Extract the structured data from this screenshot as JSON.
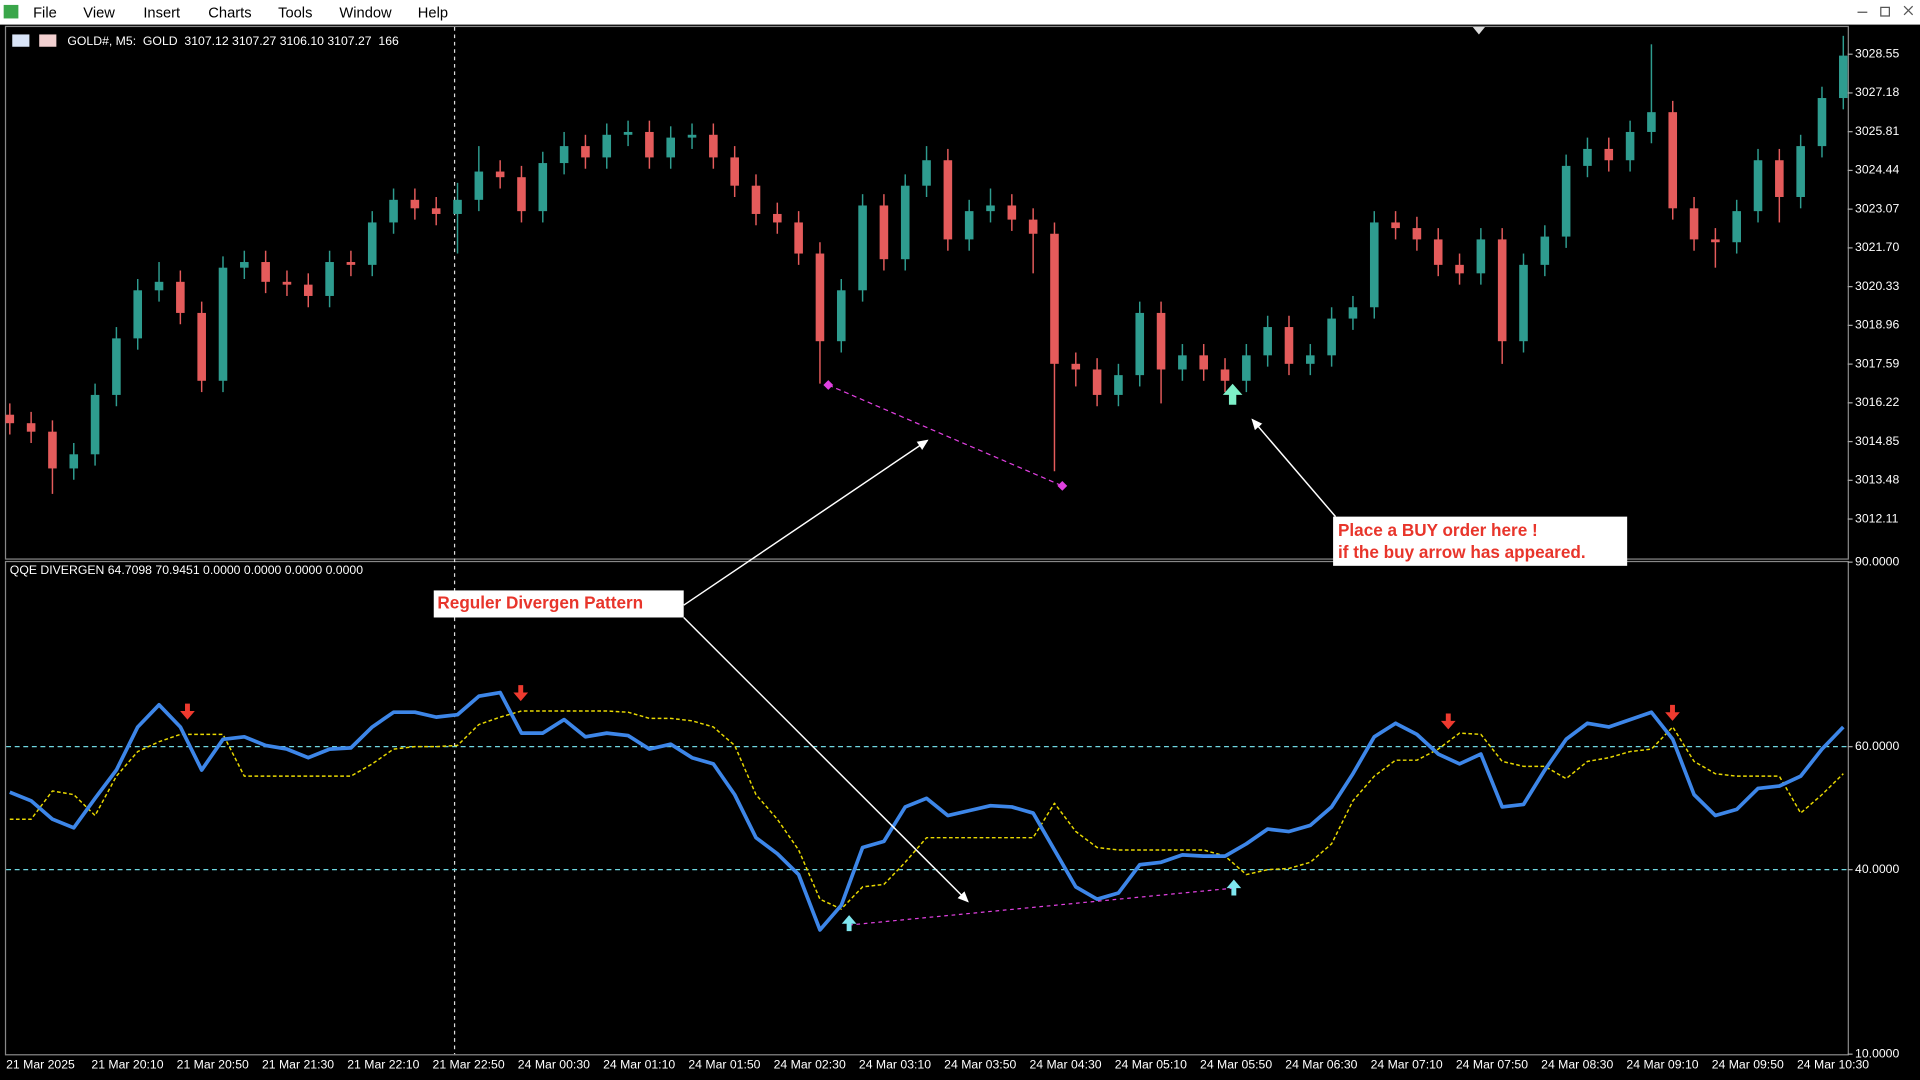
{
  "menu": [
    "File",
    "View",
    "Insert",
    "Charts",
    "Tools",
    "Window",
    "Help"
  ],
  "chart_data": [
    {
      "type": "candlestick",
      "header": "GOLD#, M5:  GOLD  3107.12 3107.27 3106.10 3107.27  166",
      "categories": [
        "21 Mar 2025",
        null,
        null,
        null,
        "21 Mar 20:10",
        null,
        null,
        null,
        "21 Mar 20:50",
        null,
        null,
        null,
        "21 Mar 21:30",
        null,
        null,
        null,
        "21 Mar 22:10",
        null,
        null,
        null,
        "21 Mar 22:50",
        null,
        null,
        null,
        "24 Mar 00:30",
        null,
        null,
        null,
        "24 Mar 01:10",
        null,
        null,
        null,
        "24 Mar 01:50",
        null,
        null,
        null,
        "24 Mar 02:30",
        null,
        null,
        null,
        "24 Mar 03:10",
        null,
        null,
        null,
        "24 Mar 03:50",
        null,
        null,
        null,
        "24 Mar 04:30",
        null,
        null,
        null,
        "24 Mar 05:10",
        null,
        null,
        null,
        "24 Mar 05:50",
        null,
        null,
        null,
        "24 Mar 06:30",
        null,
        null,
        null,
        "24 Mar 07:10",
        null,
        null,
        null,
        "24 Mar 07:50",
        null,
        null,
        null,
        "24 Mar 08:30",
        null,
        null,
        null,
        "24 Mar 09:10",
        null,
        null,
        null,
        "24 Mar 09:50",
        null,
        null,
        null,
        "24 Mar 10:30",
        null,
        null
      ],
      "open": [
        3015.8,
        3015.5,
        3015.2,
        3013.9,
        3014.4,
        3016.5,
        3018.5,
        3020.2,
        3020.5,
        3019.4,
        3017.0,
        3021.0,
        3021.2,
        3020.5,
        3020.4,
        3020.0,
        3021.2,
        3021.1,
        3022.6,
        3023.4,
        3023.1,
        3022.9,
        3023.4,
        3024.4,
        3024.2,
        3023.0,
        3024.7,
        3025.3,
        3024.9,
        3025.7,
        3025.8,
        3024.9,
        3025.6,
        3025.7,
        3024.9,
        3023.9,
        3022.9,
        3022.6,
        3021.5,
        3018.4,
        3020.2,
        3023.2,
        3021.3,
        3023.9,
        3024.8,
        3022.0,
        3023.0,
        3023.2,
        3022.7,
        3022.2,
        3017.6,
        3017.4,
        3016.5,
        3017.2,
        3019.4,
        3017.4,
        3017.9,
        3017.4,
        3017.0,
        3017.9,
        3018.9,
        3017.6,
        3017.9,
        3019.2,
        3019.6,
        3022.6,
        3022.4,
        3022.0,
        3021.1,
        3020.8,
        3022.0,
        3018.4,
        3021.1,
        3022.1,
        3024.6,
        3025.2,
        3024.8,
        3025.8,
        3026.5,
        3023.1,
        3022.0,
        3021.9,
        3023.0,
        3024.8,
        3023.5,
        3025.3,
        3027.0
      ],
      "high": [
        3016.2,
        3015.9,
        3015.6,
        3014.8,
        3016.9,
        3018.9,
        3020.6,
        3021.2,
        3020.9,
        3019.8,
        3021.4,
        3021.6,
        3021.6,
        3020.9,
        3020.8,
        3021.6,
        3021.6,
        3023.0,
        3023.8,
        3023.8,
        3023.5,
        3024.0,
        3025.3,
        3024.8,
        3024.6,
        3025.1,
        3025.8,
        3025.7,
        3026.1,
        3026.2,
        3026.2,
        3026.0,
        3026.1,
        3026.1,
        3025.3,
        3024.3,
        3023.3,
        3023.0,
        3021.9,
        3020.6,
        3023.6,
        3023.6,
        3024.3,
        3025.3,
        3025.2,
        3023.4,
        3023.8,
        3023.6,
        3023.1,
        3022.6,
        3018.0,
        3017.8,
        3017.6,
        3019.8,
        3019.8,
        3018.3,
        3018.3,
        3017.8,
        3018.3,
        3019.3,
        3019.3,
        3018.3,
        3019.6,
        3020.0,
        3023.0,
        3023.0,
        3022.8,
        3022.4,
        3021.5,
        3022.4,
        3022.4,
        3021.5,
        3022.5,
        3025.0,
        3025.6,
        3025.6,
        3026.2,
        3028.9,
        3026.9,
        3023.5,
        3022.4,
        3023.4,
        3025.2,
        3025.2,
        3025.7,
        3027.4,
        3029.2
      ],
      "low": [
        3015.1,
        3014.8,
        3013.0,
        3013.5,
        3014.0,
        3016.1,
        3018.1,
        3019.8,
        3019.0,
        3016.6,
        3016.6,
        3020.6,
        3020.1,
        3020.0,
        3019.6,
        3019.6,
        3020.7,
        3020.7,
        3022.2,
        3022.7,
        3022.5,
        3021.5,
        3023.0,
        3023.8,
        3022.6,
        3022.6,
        3024.3,
        3024.5,
        3024.5,
        3025.3,
        3024.5,
        3024.5,
        3025.2,
        3024.5,
        3023.5,
        3022.5,
        3022.2,
        3021.1,
        3016.9,
        3018.0,
        3019.8,
        3020.9,
        3020.9,
        3023.5,
        3021.6,
        3021.6,
        3022.6,
        3022.3,
        3020.8,
        3013.8,
        3016.8,
        3016.1,
        3016.1,
        3016.8,
        3016.2,
        3017.0,
        3017.0,
        3016.6,
        3016.6,
        3017.5,
        3017.2,
        3017.2,
        3017.5,
        3018.8,
        3019.2,
        3022.0,
        3021.6,
        3020.7,
        3020.4,
        3020.4,
        3017.6,
        3018.0,
        3020.7,
        3021.7,
        3024.2,
        3024.4,
        3024.4,
        3025.4,
        3022.7,
        3021.6,
        3021.0,
        3021.5,
        3022.6,
        3022.6,
        3023.1,
        3024.9,
        3026.6
      ],
      "close": [
        3015.5,
        3015.2,
        3013.9,
        3014.4,
        3016.5,
        3018.5,
        3020.2,
        3020.5,
        3019.4,
        3017.0,
        3021.0,
        3021.2,
        3020.5,
        3020.4,
        3020.0,
        3021.2,
        3021.1,
        3022.6,
        3023.4,
        3023.1,
        3022.9,
        3023.4,
        3024.4,
        3024.2,
        3023.0,
        3024.7,
        3025.3,
        3024.9,
        3025.7,
        3025.8,
        3024.9,
        3025.6,
        3025.7,
        3024.9,
        3023.9,
        3022.9,
        3022.6,
        3021.5,
        3018.4,
        3020.2,
        3023.2,
        3021.3,
        3023.9,
        3024.8,
        3022.0,
        3023.0,
        3023.2,
        3022.7,
        3022.2,
        3017.6,
        3017.4,
        3016.5,
        3017.2,
        3019.4,
        3017.4,
        3017.9,
        3017.4,
        3017.0,
        3017.9,
        3018.9,
        3017.6,
        3017.9,
        3019.2,
        3019.6,
        3022.6,
        3022.4,
        3022.0,
        3021.1,
        3020.8,
        3022.0,
        3018.4,
        3021.1,
        3022.1,
        3024.6,
        3025.2,
        3024.8,
        3025.8,
        3026.5,
        3023.1,
        3022.0,
        3021.9,
        3023.0,
        3024.8,
        3023.5,
        3025.3,
        3027.0,
        3028.5
      ],
      "up_color": "#2e9c8f",
      "down_color": "#e45b5b",
      "ylim": [
        3010.76,
        3029.51
      ],
      "yticks": [
        3028.55,
        3027.18,
        3025.81,
        3024.44,
        3023.07,
        {
          "value": 3021.7,
          "label": "3021.70"
        },
        3020.33,
        3018.96,
        3017.59,
        3016.22,
        3014.85,
        3013.48,
        3012.11
      ]
    },
    {
      "type": "line",
      "title": "QQE DIVERGEN 64.7098 70.9451 0.0000 0.0000 0.0000 0.0000",
      "series": [
        {
          "color": "#3d86e8",
          "style": "solid",
          "values": [
            52.6,
            51.2,
            48.2,
            46.8,
            51.6,
            56.2,
            63.2,
            66.8,
            63.2,
            56.2,
            61.2,
            61.6,
            60.2,
            59.6,
            58.2,
            59.6,
            59.8,
            63.2,
            65.6,
            65.6,
            64.8,
            65.2,
            68.2,
            68.8,
            62.2,
            62.2,
            64.4,
            61.6,
            62.2,
            61.8,
            59.6,
            60.4,
            58.2,
            57.2,
            52.2,
            45.2,
            42.6,
            39.2,
            30.2,
            34.2,
            43.6,
            44.6,
            50.2,
            51.6,
            48.8,
            49.6,
            50.4,
            50.2,
            49.2,
            43.2,
            37.2,
            35.2,
            36.2,
            40.8,
            41.2,
            42.4,
            42.2,
            42.2,
            44.2,
            46.6,
            46.2,
            47.2,
            50.2,
            55.6,
            61.6,
            63.8,
            62.0,
            58.8,
            57.2,
            58.8,
            50.2,
            50.6,
            56.2,
            61.2,
            63.8,
            63.2,
            64.4,
            65.6,
            61.2,
            52.2,
            48.8,
            49.8,
            53.2,
            53.6,
            55.2,
            59.6,
            63.2
          ]
        },
        {
          "color": "#e8d800",
          "style": "dashed",
          "values": [
            48.2,
            48.2,
            52.8,
            52.2,
            48.8,
            55.2,
            59.2,
            60.8,
            62.0,
            62.0,
            62.0,
            55.2,
            55.2,
            55.2,
            55.2,
            55.2,
            55.2,
            57.2,
            59.6,
            60.0,
            60.0,
            60.2,
            63.6,
            64.8,
            65.8,
            65.8,
            65.8,
            65.8,
            65.8,
            65.6,
            64.6,
            64.6,
            64.2,
            63.2,
            60.2,
            52.2,
            48.2,
            43.2,
            35.2,
            33.6,
            37.2,
            37.6,
            41.2,
            45.2,
            45.2,
            45.2,
            45.2,
            45.2,
            45.2,
            50.8,
            46.2,
            43.6,
            43.2,
            43.2,
            43.2,
            43.2,
            43.2,
            42.2,
            39.2,
            40.0,
            40.2,
            41.2,
            44.2,
            51.2,
            55.2,
            57.8,
            57.8,
            59.6,
            62.2,
            62.0,
            57.6,
            56.8,
            56.8,
            54.8,
            57.6,
            58.2,
            59.2,
            59.6,
            63.2,
            57.6,
            55.6,
            55.2,
            55.2,
            55.2,
            49.2,
            52.2,
            55.6
          ]
        }
      ],
      "levels": [
        60,
        40
      ],
      "level_color": "#6fd6e0",
      "ylim": [
        10,
        90
      ],
      "yticks": [
        {
          "value": 90,
          "label": "90.0000"
        },
        {
          "value": 60,
          "label": "60.0000"
        },
        {
          "value": 40,
          "label": "40.0000"
        },
        {
          "value": 10,
          "label": "10.0000"
        }
      ]
    }
  ],
  "annotations": {
    "divergence": "Reguler Divergen Pattern",
    "buy": [
      "Place a BUY order here !",
      "if the buy arrow has appeared."
    ]
  }
}
